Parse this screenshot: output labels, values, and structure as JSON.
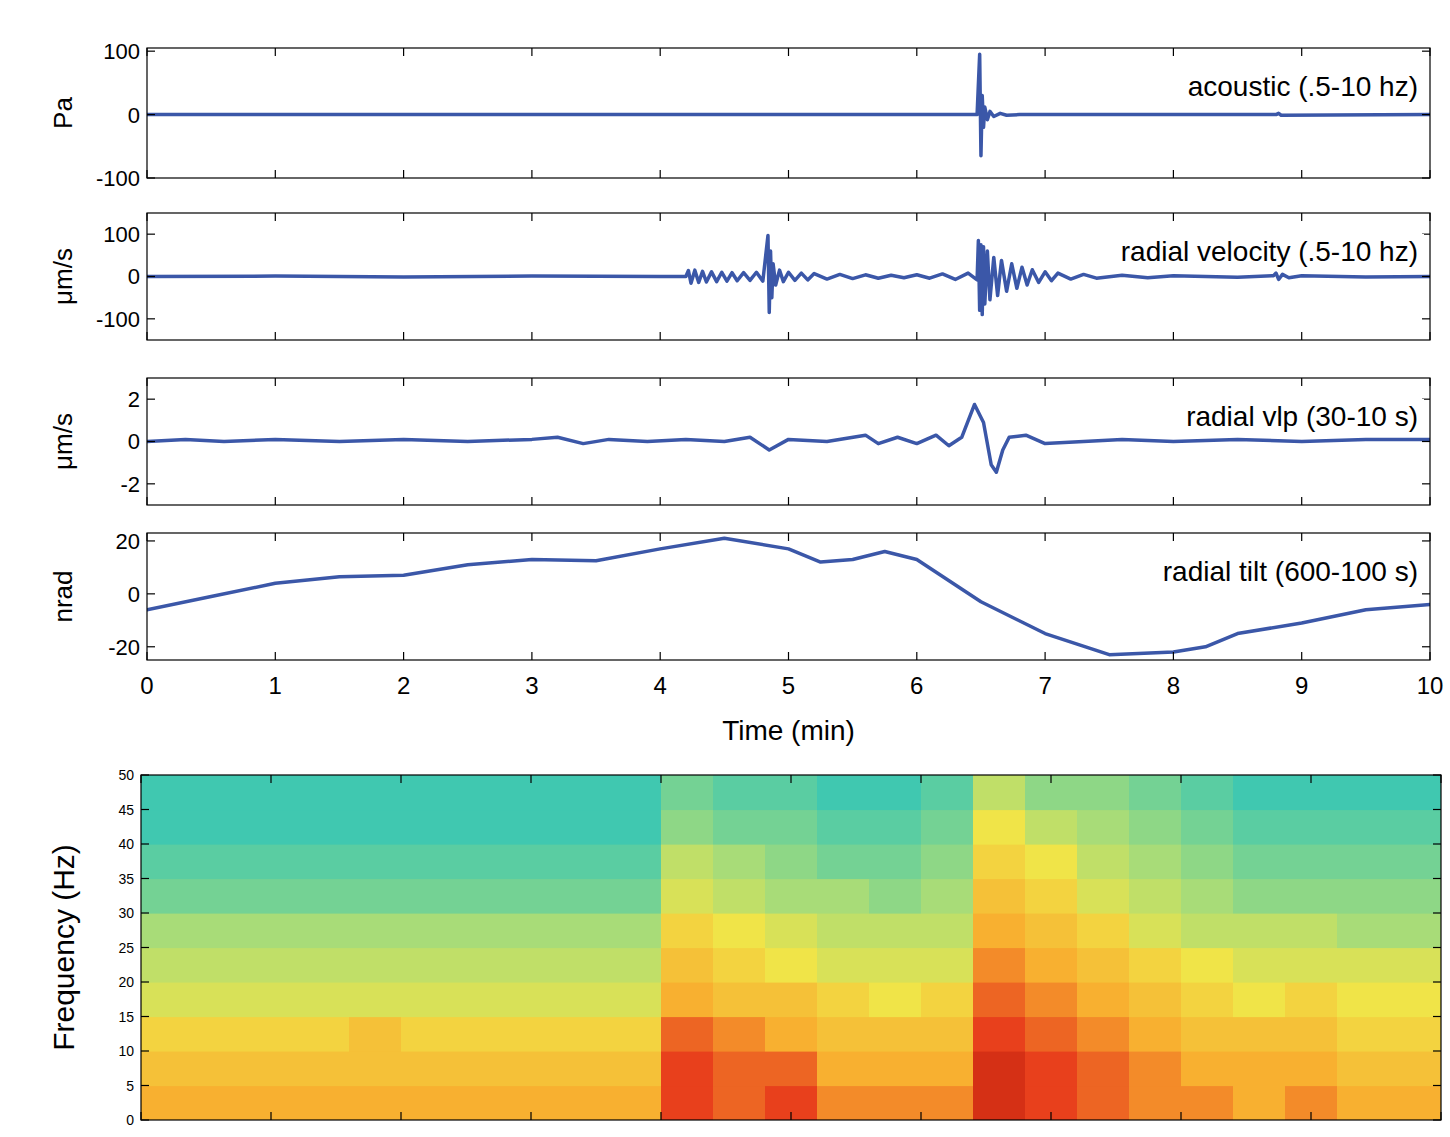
{
  "chart_data": [
    {
      "type": "line",
      "y_label": "Pa",
      "tick_labels": "y",
      "legend": "upper right",
      "xlim": [
        0,
        10
      ],
      "xticks": [
        0,
        1,
        2,
        3,
        4,
        5,
        6,
        7,
        8,
        9,
        10
      ],
      "ylim": [
        -100,
        105
      ],
      "yticks": [
        -100,
        0,
        100
      ],
      "x": [
        0,
        6.47,
        6.49,
        6.5,
        6.51,
        6.52,
        6.53,
        6.55,
        6.57,
        6.6,
        6.65,
        6.7,
        6.8,
        8.8,
        8.82,
        8.84,
        10
      ],
      "series": [
        {
          "name": "acoustic (.5-10 hz)",
          "color": "#3b57a8",
          "values": [
            0,
            0,
            95,
            -65,
            30,
            -20,
            12,
            -8,
            5,
            -3,
            2,
            -1,
            0,
            0,
            2,
            -1,
            0
          ]
        }
      ]
    },
    {
      "type": "line",
      "y_label": "μm/s",
      "tick_labels": "y",
      "legend": "upper right",
      "xlim": [
        0,
        10
      ],
      "xticks": [
        0,
        1,
        2,
        3,
        4,
        5,
        6,
        7,
        8,
        9,
        10
      ],
      "ylim": [
        -150,
        150
      ],
      "yticks": [
        -100,
        0,
        100
      ],
      "x": [
        0,
        1,
        2,
        3,
        4,
        4.2,
        4.22,
        4.24,
        4.27,
        4.3,
        4.33,
        4.36,
        4.4,
        4.44,
        4.48,
        4.52,
        4.56,
        4.6,
        4.65,
        4.7,
        4.75,
        4.8,
        4.84,
        4.85,
        4.86,
        4.87,
        4.88,
        4.9,
        4.93,
        4.96,
        5,
        5.05,
        5.1,
        5.15,
        5.2,
        5.3,
        5.4,
        5.5,
        5.6,
        5.7,
        5.8,
        5.9,
        6,
        6.1,
        6.2,
        6.3,
        6.4,
        6.47,
        6.48,
        6.49,
        6.5,
        6.51,
        6.52,
        6.53,
        6.55,
        6.57,
        6.6,
        6.63,
        6.66,
        6.7,
        6.74,
        6.78,
        6.82,
        6.86,
        6.9,
        6.95,
        7,
        7.05,
        7.1,
        7.2,
        7.3,
        7.4,
        7.6,
        7.8,
        8,
        8.5,
        8.78,
        8.8,
        8.82,
        8.85,
        8.9,
        9,
        9.5,
        10
      ],
      "series": [
        {
          "name": "radial velocity (.5-10 hz)",
          "color": "#3b57a8",
          "values": [
            0,
            1,
            -1,
            1,
            0,
            0,
            14,
            -16,
            15,
            -14,
            12,
            -13,
            11,
            -12,
            10,
            -11,
            9,
            -10,
            9,
            -9,
            10,
            -11,
            97,
            -85,
            60,
            -50,
            30,
            -20,
            15,
            -12,
            10,
            -9,
            8,
            -8,
            7,
            -6,
            5,
            -5,
            4,
            -4,
            3,
            -3,
            4,
            -4,
            6,
            -7,
            8,
            -8,
            85,
            -80,
            75,
            -90,
            70,
            -65,
            60,
            -55,
            45,
            -45,
            38,
            -35,
            30,
            -28,
            22,
            -20,
            16,
            -14,
            11,
            -10,
            8,
            -6,
            5,
            -4,
            3,
            -3,
            2,
            -2,
            2,
            8,
            -7,
            5,
            -3,
            2,
            -1,
            0
          ]
        }
      ]
    },
    {
      "type": "line",
      "y_label": "μm/s",
      "tick_labels": "y",
      "legend": "upper right",
      "xlim": [
        0,
        10
      ],
      "xticks": [
        0,
        1,
        2,
        3,
        4,
        5,
        6,
        7,
        8,
        9,
        10
      ],
      "ylim": [
        -3,
        3
      ],
      "yticks": [
        -2,
        0,
        2
      ],
      "x": [
        0,
        0.3,
        0.6,
        1,
        1.5,
        2,
        2.5,
        3,
        3.2,
        3.4,
        3.6,
        3.9,
        4.2,
        4.5,
        4.7,
        4.85,
        5,
        5.3,
        5.6,
        5.7,
        5.85,
        6,
        6.15,
        6.25,
        6.35,
        6.45,
        6.52,
        6.58,
        6.62,
        6.67,
        6.72,
        6.85,
        7,
        7.3,
        7.6,
        8,
        8.5,
        9,
        9.5,
        10
      ],
      "series": [
        {
          "name": "radial vlp (30-10 s)",
          "color": "#3b57a8",
          "values": [
            0,
            0.1,
            0,
            0.1,
            0,
            0.1,
            0,
            0.1,
            0.2,
            -0.1,
            0.1,
            0,
            0.1,
            0,
            0.2,
            -0.4,
            0.1,
            0,
            0.3,
            -0.1,
            0.2,
            -0.1,
            0.3,
            -0.2,
            0.2,
            1.75,
            0.9,
            -1.1,
            -1.45,
            -0.4,
            0.2,
            0.3,
            -0.1,
            0,
            0.1,
            0,
            0.1,
            0,
            0.1,
            0.1
          ]
        }
      ]
    },
    {
      "type": "line",
      "y_label": "nrad",
      "x_label": "Time (min)",
      "legend": "upper right",
      "xlim": [
        0,
        10
      ],
      "xticks": [
        0,
        1,
        2,
        3,
        4,
        5,
        6,
        7,
        8,
        9,
        10
      ],
      "ylim": [
        -25,
        23
      ],
      "yticks": [
        -20,
        0,
        20
      ],
      "x": [
        0,
        0.5,
        1,
        1.5,
        2,
        2.5,
        3,
        3.5,
        4,
        4.5,
        5,
        5.25,
        5.5,
        5.75,
        6,
        6.5,
        7,
        7.5,
        8,
        8.25,
        8.5,
        9,
        9.5,
        10
      ],
      "series": [
        {
          "name": "radial tilt (600-100 s)",
          "color": "#3b57a8",
          "values": [
            -6,
            -1,
            4,
            6.5,
            7,
            11,
            13,
            12.5,
            17,
            21,
            17,
            12,
            13,
            16,
            13,
            -3,
            -15,
            -23,
            -22,
            -20,
            -15,
            -11,
            -6,
            -4
          ]
        }
      ]
    },
    {
      "type": "heatmap",
      "y_label": "Frequency (Hz)",
      "tick_labels": "y",
      "xlim": [
        0,
        10
      ],
      "xticks": [
        0,
        1,
        2,
        3,
        4,
        5,
        6,
        7,
        8,
        9,
        10
      ],
      "ylim": [
        0,
        50
      ],
      "yticks": [
        0,
        5,
        10,
        15,
        20,
        25,
        30,
        35,
        40,
        45,
        50
      ],
      "color_range": [
        0,
        10
      ],
      "x_edges": [
        0,
        0.4,
        0.8,
        1.2,
        1.6,
        2,
        2.4,
        2.8,
        3.2,
        3.6,
        4,
        4.4,
        4.8,
        5.2,
        5.6,
        6,
        6.4,
        6.8,
        7.2,
        7.6,
        8,
        8.4,
        8.8,
        9.2,
        9.6,
        10
      ],
      "y_edges": [
        0,
        5,
        10,
        15,
        20,
        25,
        30,
        35,
        40,
        45,
        50
      ],
      "cells": [
        [
          7,
          6.5,
          6,
          5,
          4.5,
          4,
          3,
          2.5,
          2,
          2
        ],
        [
          7,
          6.5,
          6,
          5,
          4.5,
          4,
          3,
          2.5,
          2,
          2
        ],
        [
          7,
          6.5,
          6,
          5,
          4.5,
          4,
          3,
          2.5,
          2,
          2
        ],
        [
          7,
          6.5,
          6,
          5,
          4.5,
          4,
          3,
          2.5,
          2,
          2
        ],
        [
          7,
          6.5,
          6.5,
          5,
          4.5,
          4,
          3,
          2.5,
          2,
          2
        ],
        [
          7,
          6.5,
          6,
          5,
          4.5,
          4,
          3,
          2.5,
          2,
          2
        ],
        [
          7,
          6.5,
          6,
          5,
          4.5,
          4,
          3,
          2.5,
          2,
          2
        ],
        [
          7,
          6.5,
          6,
          5,
          4.5,
          4,
          3,
          2.5,
          2,
          2
        ],
        [
          7,
          6.5,
          6,
          5,
          4.5,
          4,
          3,
          2.5,
          2,
          2
        ],
        [
          7,
          6.5,
          6,
          5,
          4.5,
          4,
          3,
          2.5,
          2,
          2
        ],
        [
          8.5,
          8.5,
          8,
          7,
          6.5,
          6,
          5,
          4.5,
          3.5,
          3
        ],
        [
          8,
          8,
          7.5,
          6.5,
          6,
          5.5,
          4.5,
          4,
          3,
          2.5
        ],
        [
          8.5,
          8,
          7,
          6.5,
          5.5,
          5,
          4,
          3.5,
          3,
          2.5
        ],
        [
          7.5,
          7,
          6.5,
          6,
          5,
          4.5,
          4,
          3,
          2.5,
          2
        ],
        [
          7.5,
          7,
          6.5,
          5.5,
          5,
          4.5,
          3.5,
          3,
          2.5,
          2
        ],
        [
          7.5,
          7,
          6.5,
          6,
          5,
          4.5,
          4,
          3.5,
          3,
          2.5
        ],
        [
          9,
          9,
          8.5,
          8,
          7.5,
          7,
          6.5,
          6,
          5.5,
          4.5
        ],
        [
          8.5,
          8.5,
          8,
          7.5,
          7,
          6.5,
          6,
          5.5,
          4.5,
          3.5
        ],
        [
          8,
          8,
          7.5,
          7,
          6.5,
          6,
          5,
          4.5,
          4,
          3.5
        ],
        [
          7.5,
          7.5,
          7,
          6.5,
          6,
          5,
          4.5,
          4,
          3.5,
          3
        ],
        [
          7.5,
          7,
          6.5,
          6,
          5.5,
          4.5,
          4,
          3.5,
          3,
          2.5
        ],
        [
          7,
          7,
          6.5,
          5.5,
          5,
          4.5,
          3.5,
          3,
          2.5,
          2
        ],
        [
          7.5,
          7,
          6.5,
          6,
          5,
          4.5,
          3.5,
          3,
          2.5,
          2
        ],
        [
          7,
          6.5,
          6,
          5.5,
          5,
          4,
          3.5,
          3,
          2.5,
          2
        ],
        [
          7,
          6.5,
          6,
          5.5,
          5,
          4,
          3.5,
          3,
          2.5,
          2
        ]
      ]
    }
  ]
}
